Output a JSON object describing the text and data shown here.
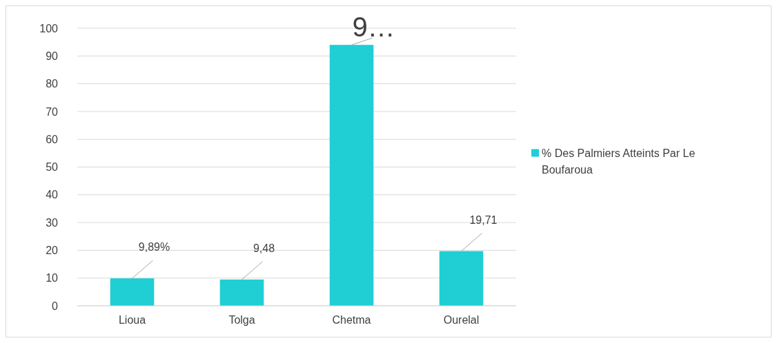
{
  "chart_data": {
    "type": "bar",
    "categories": [
      "Lioua",
      "Tolga",
      "Chetma",
      "Ourelal"
    ],
    "series": [
      {
        "name": "% Des Palmiers Atteints Par Le Boufaroua",
        "color": "#1fcfd4",
        "values": [
          9.89,
          9.48,
          94,
          19.71
        ],
        "value_labels": [
          "9,89%",
          "9,48",
          "9…",
          "19,71"
        ]
      }
    ],
    "ylim": [
      0,
      100
    ],
    "yticks": [
      0,
      10,
      20,
      30,
      40,
      50,
      60,
      70,
      80,
      90,
      100
    ],
    "grid": "y",
    "legend": "right"
  }
}
